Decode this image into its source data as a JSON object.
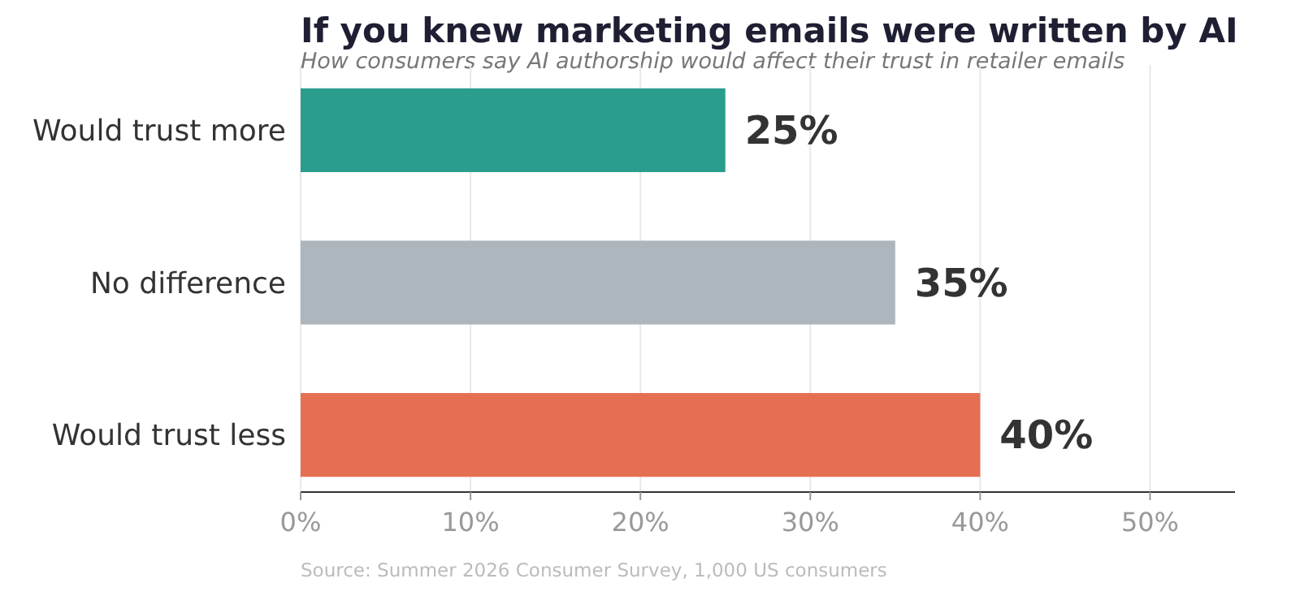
{
  "chart_data": {
    "type": "bar",
    "orientation": "horizontal",
    "title": "If you knew marketing emails were written by AI",
    "subtitle": "How consumers say AI authorship would affect their trust in retailer emails",
    "categories": [
      "Would trust more",
      "No difference",
      "Would trust less"
    ],
    "values": [
      25,
      35,
      40
    ],
    "colors": [
      "#2a9d8f",
      "#adb5bd",
      "#e76f51"
    ],
    "value_labels": [
      "25%",
      "35%",
      "40%"
    ],
    "xlim": [
      0,
      55
    ],
    "xticks": [
      {
        "value": 0,
        "label": "0%"
      },
      {
        "value": 10,
        "label": "10%"
      },
      {
        "value": 20,
        "label": "20%"
      },
      {
        "value": 30,
        "label": "30%"
      },
      {
        "value": 40,
        "label": "40%"
      },
      {
        "value": 50,
        "label": "50%"
      }
    ],
    "grid": "x",
    "annotations": [
      "Source: Summer 2026 Consumer Survey, 1,000 US consumers"
    ]
  }
}
